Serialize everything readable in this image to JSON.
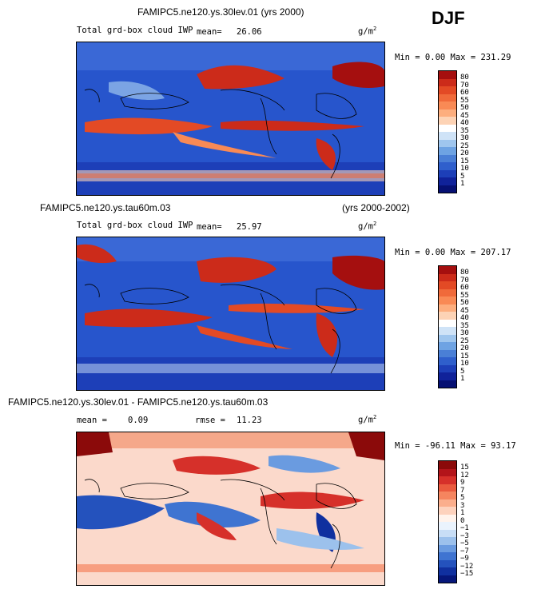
{
  "season": "DJF",
  "panels": [
    {
      "title": "FAMIPC5.ne120.ys.30lev.01 (yrs 2000)",
      "variable": "Total grd-box cloud IWP",
      "mean_label": "mean=",
      "mean_value": "26.06",
      "units": "g/m",
      "units_exp": "2",
      "minmax": "Min =   0.00 Max = 231.29",
      "colorbar_labels": [
        "80",
        "70",
        "60",
        "55",
        "50",
        "45",
        "40",
        "35",
        "30",
        "25",
        "20",
        "15",
        "10",
        "5",
        "1"
      ],
      "colorbar_colors": [
        "#a50f0f",
        "#cc2b1a",
        "#e34a25",
        "#f06a3a",
        "#f98a55",
        "#fdae7e",
        "#fdd3b5",
        "#ffffff",
        "#cfe3f7",
        "#9fc6ee",
        "#6ea3e3",
        "#4a7fd6",
        "#2f5fcc",
        "#1d3fb8",
        "#10229a",
        "#061073"
      ]
    },
    {
      "title": "FAMIPC5.ne120.ys.tau60m.03",
      "title_right": "(yrs 2000-2002)",
      "variable": "Total grd-box cloud IWP",
      "mean_label": "mean=",
      "mean_value": "25.97",
      "units": "g/m",
      "units_exp": "2",
      "minmax": "Min =   0.00 Max = 207.17",
      "colorbar_labels": [
        "80",
        "70",
        "60",
        "55",
        "50",
        "45",
        "40",
        "35",
        "30",
        "25",
        "20",
        "15",
        "10",
        "5",
        "1"
      ],
      "colorbar_colors": [
        "#a50f0f",
        "#cc2b1a",
        "#e34a25",
        "#f06a3a",
        "#f98a55",
        "#fdae7e",
        "#fdd3b5",
        "#ffffff",
        "#cfe3f7",
        "#9fc6ee",
        "#6ea3e3",
        "#4a7fd6",
        "#2f5fcc",
        "#1d3fb8",
        "#10229a",
        "#061073"
      ]
    },
    {
      "title": "FAMIPC5.ne120.ys.30lev.01 - FAMIPC5.ne120.ys.tau60m.03",
      "mean_label": "mean =",
      "mean_value": "0.09",
      "rmse_label": "rmse =",
      "rmse_value": "11.23",
      "units": "g/m",
      "units_exp": "2",
      "minmax": "Min = -96.11 Max =  93.17",
      "colorbar_labels": [
        "15",
        "12",
        "9",
        "7",
        "5",
        "3",
        "1",
        "0",
        "−1",
        "−3",
        "−5",
        "−7",
        "−9",
        "−12",
        "−15"
      ],
      "colorbar_colors": [
        "#8b0a0a",
        "#b3141a",
        "#d6302a",
        "#ea5a3e",
        "#f5855f",
        "#fbae8c",
        "#fdd2bd",
        "#fff3ec",
        "#eaf3fd",
        "#c8def6",
        "#9cc1ec",
        "#6a9be0",
        "#3f74d1",
        "#2452bd",
        "#10309f",
        "#06177a"
      ]
    }
  ]
}
